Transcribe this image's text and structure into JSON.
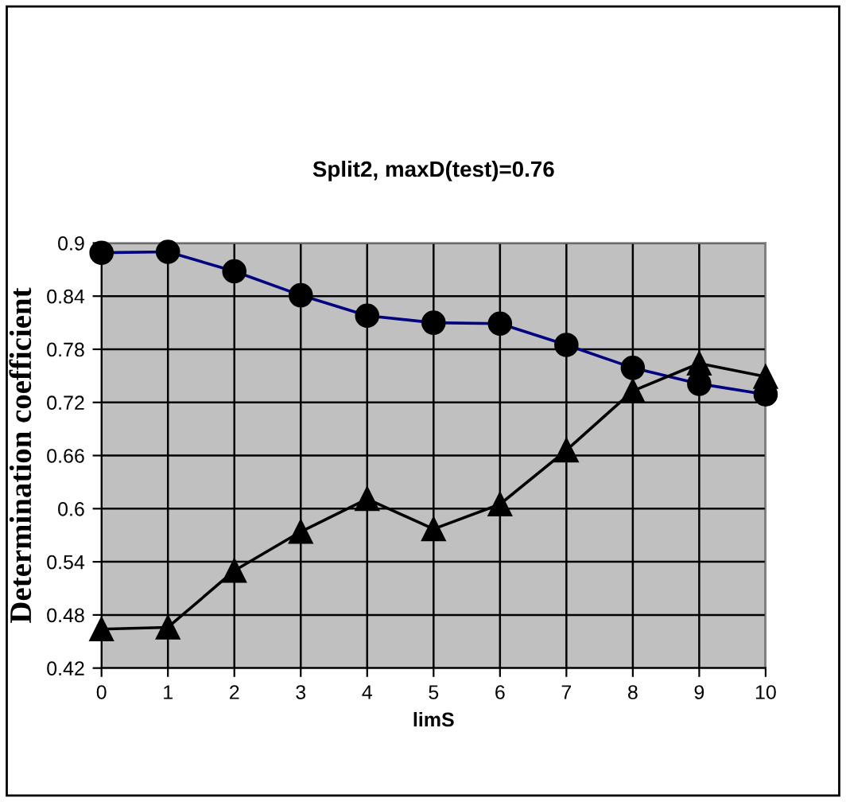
{
  "chart_data": {
    "type": "line",
    "title": "Split2, maxD(test)=0.76",
    "xlabel": "limS",
    "ylabel": "Determination coefficient",
    "x": [
      0,
      1,
      2,
      3,
      4,
      5,
      6,
      7,
      8,
      9,
      10
    ],
    "series": [
      {
        "color": "#000080",
        "marker": "circle",
        "values": [
          0.889,
          0.89,
          0.868,
          0.841,
          0.818,
          0.81,
          0.809,
          0.785,
          0.759,
          0.741,
          0.729
        ]
      },
      {
        "color": "#000000",
        "marker": "triangle",
        "values": [
          0.464,
          0.466,
          0.53,
          0.574,
          0.611,
          0.577,
          0.605,
          0.666,
          0.733,
          0.764,
          0.749
        ]
      }
    ],
    "xlim": [
      0,
      10
    ],
    "xticks": [
      0,
      1,
      2,
      3,
      4,
      5,
      6,
      7,
      8,
      9,
      10
    ],
    "ylim": [
      0.42,
      0.9
    ],
    "yticks": [
      0.42,
      0.48,
      0.54,
      0.6,
      0.66,
      0.72,
      0.78,
      0.84,
      0.9
    ],
    "grid": true,
    "legend": false
  }
}
